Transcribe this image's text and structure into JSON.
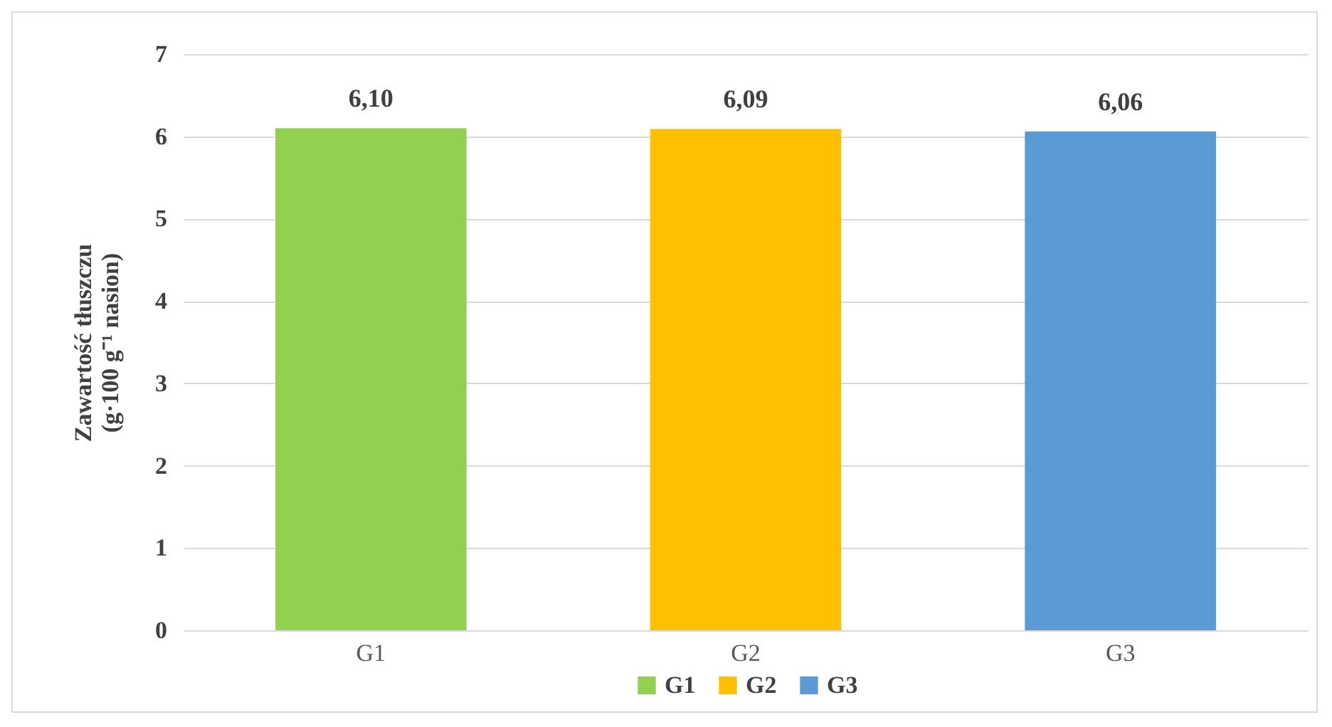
{
  "chart_data": {
    "type": "bar",
    "ylabel": "Zawartość tłuszczu (g·100 g⁻¹ nasion)",
    "categories": [
      "G1",
      "G2",
      "G3"
    ],
    "series": [
      {
        "name": "G1",
        "color": "#92d050",
        "values": [
          6.1,
          null,
          null
        ],
        "value_labels": [
          "6,10",
          null,
          null
        ]
      },
      {
        "name": "G2",
        "color": "#ffc000",
        "values": [
          null,
          6.09,
          null
        ],
        "value_labels": [
          null,
          "6,09",
          null
        ]
      },
      {
        "name": "G3",
        "color": "#5b9bd5",
        "values": [
          null,
          null,
          6.06
        ],
        "value_labels": [
          null,
          null,
          "6,06"
        ]
      }
    ],
    "ylim": [
      0,
      7
    ],
    "yticks": [
      0,
      1,
      2,
      3,
      4,
      5,
      6,
      7
    ],
    "grid": "y",
    "legend": "bottom"
  }
}
